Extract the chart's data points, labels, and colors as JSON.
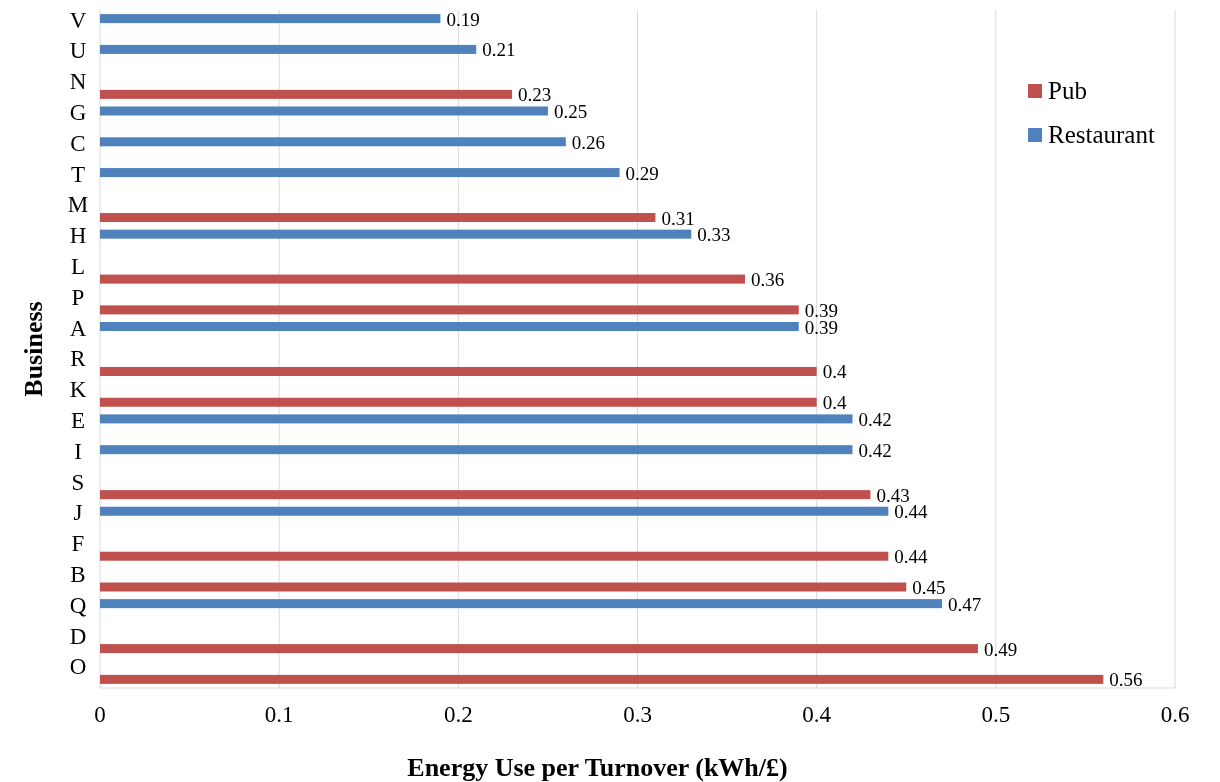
{
  "chart_data": {
    "type": "bar",
    "orientation": "horizontal",
    "xlabel": "Energy Use per Turnover (kWh/£)",
    "ylabel": "Business",
    "categories": [
      "V",
      "U",
      "N",
      "G",
      "C",
      "T",
      "M",
      "H",
      "L",
      "P",
      "A",
      "R",
      "K",
      "E",
      "I",
      "S",
      "J",
      "F",
      "B",
      "Q",
      "D",
      "O"
    ],
    "series": [
      {
        "name": "Pub",
        "color": "#c0504d",
        "values": [
          null,
          null,
          0.23,
          null,
          null,
          null,
          0.31,
          null,
          0.36,
          0.39,
          null,
          0.4,
          0.4,
          null,
          null,
          0.43,
          null,
          0.44,
          0.45,
          null,
          0.49,
          0.56
        ]
      },
      {
        "name": "Restaurant",
        "color": "#4f81bd",
        "values": [
          0.19,
          0.21,
          null,
          0.25,
          0.26,
          0.29,
          null,
          0.33,
          null,
          null,
          0.39,
          null,
          null,
          0.42,
          0.42,
          null,
          0.44,
          null,
          null,
          0.47,
          null,
          null
        ]
      }
    ],
    "xlim": [
      0,
      0.6
    ],
    "xticks": [
      0,
      0.1,
      0.2,
      0.3,
      0.4,
      0.5,
      0.6
    ],
    "grid": "x",
    "legend": "top right",
    "data_labels": true
  }
}
